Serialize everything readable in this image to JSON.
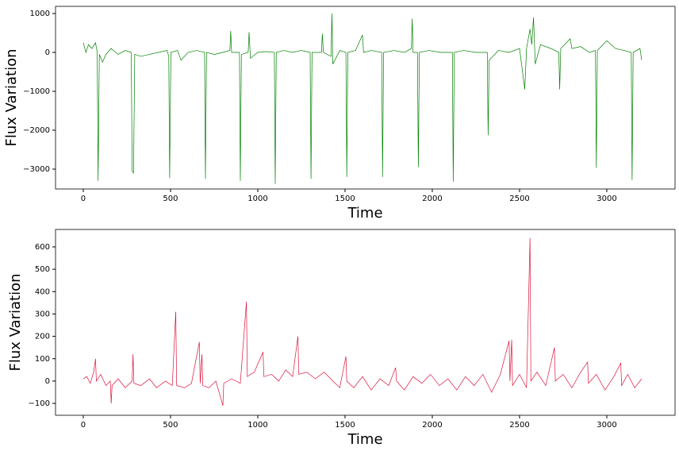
{
  "chart_data": [
    {
      "type": "line",
      "x_label": "Time",
      "y_label": "Flux Variation",
      "xlim": [
        -159,
        3391
      ],
      "xticks": [
        0,
        500,
        1000,
        1500,
        2000,
        2500,
        3000
      ],
      "ylim": [
        -3510,
        1184
      ],
      "yticks": [
        {
          "value": -3000,
          "label": "−3000"
        },
        {
          "value": -2000,
          "label": "−2000"
        },
        {
          "value": -1000,
          "label": "−1000"
        },
        0,
        1000
      ],
      "grid": false,
      "series": [
        {
          "color": "#008000",
          "x": [
            0,
            15,
            30,
            50,
            70,
            80,
            85,
            92,
            110,
            130,
            160,
            200,
            240,
            275,
            280,
            288,
            295,
            330,
            380,
            430,
            480,
            490,
            495,
            502,
            540,
            560,
            600,
            650,
            695,
            700,
            706,
            750,
            800,
            840,
            845,
            850,
            895,
            900,
            906,
            945,
            950,
            958,
            1000,
            1050,
            1095,
            1100,
            1106,
            1150,
            1200,
            1250,
            1300,
            1305,
            1311,
            1365,
            1370,
            1376,
            1420,
            1425,
            1430,
            1470,
            1505,
            1510,
            1516,
            1560,
            1600,
            1606,
            1650,
            1710,
            1715,
            1721,
            1780,
            1840,
            1880,
            1885,
            1890,
            1915,
            1920,
            1926,
            1980,
            2050,
            2115,
            2120,
            2126,
            2180,
            2250,
            2315,
            2320,
            2326,
            2380,
            2440,
            2500,
            2530,
            2540,
            2560,
            2570,
            2580,
            2590,
            2620,
            2680,
            2725,
            2730,
            2736,
            2790,
            2800,
            2850,
            2900,
            2935,
            2940,
            2946,
            3000,
            3050,
            3100,
            3140,
            3145,
            3151,
            3190,
            3200
          ],
          "values": [
            250,
            0,
            200,
            100,
            250,
            0,
            -3300,
            -50,
            -250,
            -50,
            100,
            -50,
            50,
            0,
            -3050,
            -3100,
            -50,
            -100,
            -50,
            0,
            50,
            -100,
            -3230,
            0,
            50,
            -200,
            0,
            50,
            0,
            -3250,
            0,
            -50,
            0,
            50,
            550,
            0,
            0,
            -3300,
            -50,
            0,
            520,
            -150,
            0,
            20,
            0,
            -3380,
            0,
            50,
            0,
            50,
            0,
            -3250,
            0,
            0,
            480,
            0,
            -100,
            1000,
            -300,
            50,
            0,
            -3200,
            0,
            50,
            450,
            0,
            50,
            0,
            -3200,
            0,
            50,
            0,
            100,
            870,
            0,
            0,
            -2950,
            0,
            50,
            0,
            0,
            -3320,
            0,
            50,
            0,
            0,
            -2130,
            -200,
            50,
            0,
            100,
            -950,
            100,
            600,
            200,
            900,
            -300,
            200,
            100,
            0,
            -950,
            100,
            350,
            100,
            150,
            0,
            50,
            -2970,
            50,
            300,
            100,
            50,
            0,
            -3280,
            0,
            100,
            -200
          ]
        }
      ]
    },
    {
      "type": "line",
      "x_label": "Time",
      "y_label": "Flux Variation",
      "xlim": [
        -159,
        3391
      ],
      "xticks": [
        0,
        500,
        1000,
        1500,
        2000,
        2500,
        3000
      ],
      "ylim": [
        -153,
        678
      ],
      "yticks": [
        {
          "value": -100,
          "label": "−100"
        },
        0,
        100,
        200,
        300,
        400,
        500,
        600
      ],
      "grid": false,
      "series": [
        {
          "color": "#dc143c",
          "x": [
            0,
            20,
            40,
            60,
            70,
            75,
            100,
            130,
            155,
            160,
            165,
            200,
            240,
            280,
            285,
            290,
            330,
            380,
            420,
            470,
            510,
            530,
            535,
            580,
            620,
            665,
            670,
            680,
            685,
            720,
            760,
            800,
            805,
            850,
            900,
            935,
            940,
            980,
            1030,
            1035,
            1080,
            1120,
            1160,
            1200,
            1230,
            1235,
            1280,
            1330,
            1380,
            1430,
            1470,
            1505,
            1510,
            1550,
            1600,
            1650,
            1700,
            1750,
            1790,
            1795,
            1840,
            1890,
            1940,
            1990,
            2040,
            2090,
            2140,
            2190,
            2240,
            2290,
            2340,
            2390,
            2440,
            2445,
            2455,
            2460,
            2500,
            2540,
            2560,
            2565,
            2600,
            2650,
            2700,
            2705,
            2750,
            2800,
            2850,
            2890,
            2895,
            2940,
            2990,
            3040,
            3080,
            3085,
            3120,
            3160,
            3200
          ],
          "values": [
            10,
            20,
            -10,
            40,
            100,
            0,
            30,
            -20,
            0,
            -100,
            -20,
            10,
            -30,
            0,
            120,
            -10,
            -20,
            10,
            -30,
            0,
            -20,
            310,
            -20,
            -30,
            -10,
            175,
            -10,
            120,
            -20,
            -30,
            0,
            -110,
            -10,
            10,
            -10,
            355,
            20,
            40,
            130,
            20,
            30,
            0,
            50,
            20,
            200,
            30,
            40,
            10,
            40,
            0,
            -30,
            110,
            0,
            -30,
            20,
            -40,
            10,
            -20,
            60,
            0,
            -40,
            20,
            -10,
            30,
            -20,
            10,
            -40,
            20,
            -20,
            30,
            -50,
            30,
            180,
            0,
            185,
            -20,
            30,
            -30,
            640,
            0,
            40,
            -20,
            150,
            0,
            30,
            -30,
            40,
            85,
            -10,
            30,
            -40,
            20,
            80,
            -20,
            30,
            -30,
            10
          ]
        }
      ]
    }
  ]
}
